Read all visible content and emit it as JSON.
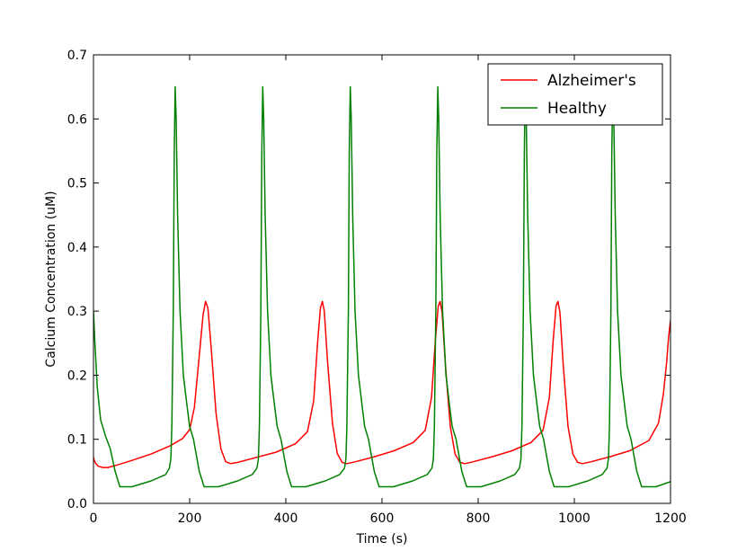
{
  "chart_data": {
    "type": "line",
    "title": "",
    "xlabel": "Time (s)",
    "ylabel": "Calcium Concentration (uM)",
    "xlim": [
      0,
      1200
    ],
    "ylim": [
      0,
      0.7
    ],
    "xticks": [
      0,
      200,
      400,
      600,
      800,
      1000,
      1200
    ],
    "yticks": [
      0.0,
      0.1,
      0.2,
      0.3,
      0.4,
      0.5,
      0.6,
      0.7
    ],
    "xtick_labels": [
      "0",
      "200",
      "400",
      "600",
      "800",
      "1000",
      "1200"
    ],
    "ytick_labels": [
      "0.0",
      "0.1",
      "0.2",
      "0.3",
      "0.4",
      "0.5",
      "0.6",
      "0.7"
    ],
    "grid": false,
    "legend_position": "top-right",
    "series": [
      {
        "name": "Alzheimer's",
        "color": "#ff0000",
        "x": [
          0,
          2,
          5,
          10,
          20,
          30,
          50,
          80,
          120,
          160,
          185,
          200,
          210,
          220,
          228,
          233,
          238,
          245,
          255,
          265,
          275,
          285,
          300,
          340,
          380,
          420,
          445,
          458,
          466,
          472,
          476,
          480,
          487,
          497,
          507,
          517,
          527,
          545,
          585,
          625,
          665,
          690,
          703,
          711,
          717,
          721,
          725,
          732,
          742,
          752,
          762,
          772,
          790,
          830,
          870,
          910,
          935,
          948,
          956,
          962,
          966,
          970,
          977,
          987,
          997,
          1007,
          1017,
          1035,
          1075,
          1115,
          1155,
          1175,
          1185,
          1192,
          1196,
          1200
        ],
        "y": [
          0.072,
          0.066,
          0.062,
          0.058,
          0.056,
          0.056,
          0.06,
          0.067,
          0.077,
          0.09,
          0.101,
          0.115,
          0.15,
          0.23,
          0.295,
          0.315,
          0.305,
          0.24,
          0.14,
          0.085,
          0.065,
          0.062,
          0.064,
          0.072,
          0.08,
          0.093,
          0.112,
          0.16,
          0.25,
          0.305,
          0.315,
          0.3,
          0.22,
          0.125,
          0.078,
          0.064,
          0.062,
          0.065,
          0.073,
          0.082,
          0.095,
          0.114,
          0.165,
          0.255,
          0.308,
          0.315,
          0.298,
          0.215,
          0.12,
          0.077,
          0.064,
          0.062,
          0.065,
          0.073,
          0.082,
          0.095,
          0.114,
          0.165,
          0.255,
          0.308,
          0.315,
          0.298,
          0.215,
          0.12,
          0.077,
          0.064,
          0.062,
          0.065,
          0.073,
          0.082,
          0.098,
          0.125,
          0.17,
          0.22,
          0.26,
          0.285
        ]
      },
      {
        "name": "Healthy",
        "color": "#008000",
        "x": [
          0,
          3,
          8,
          15,
          25,
          35,
          45,
          55,
          80,
          120,
          150,
          158,
          161,
          163,
          166,
          168,
          170,
          172,
          175,
          180,
          187,
          195,
          200,
          208,
          220,
          230,
          260,
          300,
          330,
          340,
          343,
          345,
          348,
          350,
          352,
          354,
          357,
          362,
          369,
          377,
          382,
          390,
          402,
          412,
          442,
          482,
          512,
          522,
          525,
          527,
          530,
          532,
          534,
          536,
          539,
          544,
          551,
          559,
          564,
          572,
          584,
          594,
          624,
          664,
          694,
          704,
          707,
          709,
          712,
          714,
          716,
          718,
          721,
          726,
          733,
          741,
          746,
          754,
          766,
          776,
          806,
          846,
          876,
          886,
          889,
          891,
          894,
          896,
          898,
          900,
          903,
          908,
          915,
          923,
          928,
          936,
          948,
          958,
          988,
          1028,
          1058,
          1068,
          1071,
          1073,
          1076,
          1078,
          1080,
          1082,
          1085,
          1090,
          1097,
          1105,
          1110,
          1118,
          1130,
          1140,
          1170,
          1200
        ],
        "y": [
          0.3,
          0.25,
          0.18,
          0.13,
          0.105,
          0.085,
          0.05,
          0.026,
          0.026,
          0.035,
          0.045,
          0.055,
          0.07,
          0.12,
          0.3,
          0.55,
          0.65,
          0.6,
          0.45,
          0.3,
          0.2,
          0.15,
          0.12,
          0.1,
          0.05,
          0.026,
          0.026,
          0.035,
          0.045,
          0.055,
          0.07,
          0.12,
          0.3,
          0.55,
          0.65,
          0.6,
          0.45,
          0.3,
          0.2,
          0.15,
          0.12,
          0.1,
          0.05,
          0.026,
          0.026,
          0.035,
          0.045,
          0.055,
          0.07,
          0.12,
          0.3,
          0.55,
          0.65,
          0.6,
          0.45,
          0.3,
          0.2,
          0.15,
          0.12,
          0.1,
          0.05,
          0.026,
          0.026,
          0.035,
          0.045,
          0.055,
          0.07,
          0.12,
          0.3,
          0.55,
          0.65,
          0.6,
          0.45,
          0.3,
          0.2,
          0.15,
          0.12,
          0.1,
          0.05,
          0.026,
          0.026,
          0.035,
          0.045,
          0.055,
          0.07,
          0.12,
          0.3,
          0.55,
          0.65,
          0.6,
          0.45,
          0.3,
          0.2,
          0.15,
          0.12,
          0.1,
          0.05,
          0.026,
          0.026,
          0.035,
          0.045,
          0.055,
          0.07,
          0.12,
          0.3,
          0.55,
          0.65,
          0.6,
          0.45,
          0.3,
          0.2,
          0.15,
          0.12,
          0.1,
          0.05,
          0.026,
          0.026,
          0.034
        ]
      }
    ]
  }
}
